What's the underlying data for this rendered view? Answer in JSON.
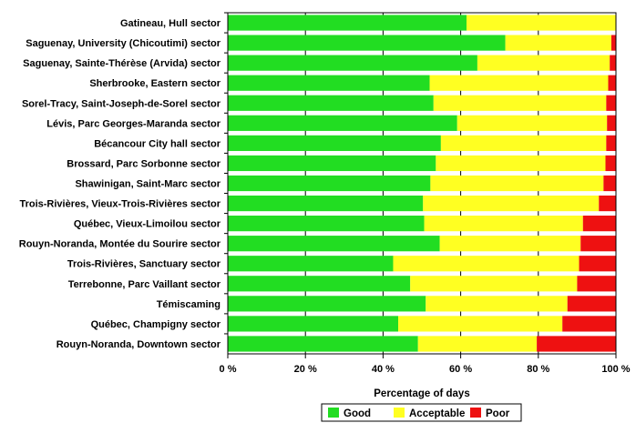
{
  "chart_data": {
    "type": "bar",
    "orientation": "horizontal",
    "stacked": true,
    "categories": [
      "Gatineau, Hull sector",
      "Saguenay, University (Chicoutimi) sector",
      "Saguenay, Sainte-Thérèse (Arvida) sector",
      "Sherbrooke, Eastern sector",
      "Sorel-Tracy, Saint-Joseph-de-Sorel sector",
      "Lévis, Parc Georges-Maranda sector",
      "Bécancour City hall sector",
      "Brossard, Parc Sorbonne sector",
      "Shawinigan, Saint-Marc sector",
      "Trois-Rivières, Vieux-Trois-Rivières sector",
      "Québec, Vieux-Limoilou sector",
      "Rouyn-Noranda, Montée du Sourire sector",
      "Trois-Rivières, Sanctuary sector",
      "Terrebonne, Parc Vaillant sector",
      "Témiscaming",
      "Québec, Champigny sector",
      "Rouyn-Noranda,  Downtown sector"
    ],
    "series": [
      {
        "name": "Good",
        "color": "#22dd22",
        "values": [
          61.5,
          71.5,
          64.3,
          52.0,
          53.0,
          59.1,
          54.9,
          53.6,
          52.2,
          50.3,
          50.6,
          54.6,
          42.6,
          47.0,
          51.0,
          43.9,
          49.0
        ]
      },
      {
        "name": "Acceptable",
        "color": "#ffff22",
        "values": [
          38.5,
          27.3,
          34.1,
          46.0,
          44.5,
          38.6,
          42.6,
          43.7,
          44.6,
          45.3,
          40.9,
          36.3,
          47.9,
          43.0,
          36.5,
          42.3,
          30.6
        ]
      },
      {
        "name": "Poor",
        "color": "#ee1111",
        "values": [
          0.0,
          1.2,
          1.6,
          2.0,
          2.5,
          2.3,
          2.5,
          2.7,
          3.2,
          4.4,
          8.5,
          9.1,
          9.5,
          10.0,
          12.5,
          13.8,
          20.4
        ]
      }
    ],
    "xlabel": "Percentage of days",
    "xlim": [
      0,
      100
    ],
    "xticks": [
      "0 %",
      "20 %",
      "40 %",
      "60 %",
      "80 %",
      "100 %"
    ],
    "grid": true,
    "legend_position": "bottom"
  }
}
